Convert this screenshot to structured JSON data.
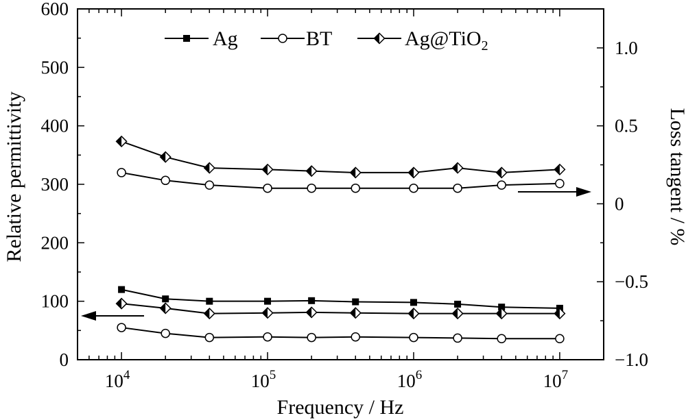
{
  "chart_data": {
    "type": "line",
    "xlabel": "Frequency / Hz",
    "ylabel_left": "Relative permittivity",
    "ylabel_right": "Loss tangent / %",
    "x_scale": "log",
    "xlim": [
      5000,
      20000000
    ],
    "ylim_left": [
      0,
      600
    ],
    "ylim_right": [
      -1.0,
      1.25
    ],
    "x_ticks": [
      {
        "value": 10000,
        "base": "10",
        "exp": "4"
      },
      {
        "value": 100000,
        "base": "10",
        "exp": "5"
      },
      {
        "value": 1000000,
        "base": "10",
        "exp": "6"
      },
      {
        "value": 10000000,
        "base": "10",
        "exp": "7"
      }
    ],
    "y_ticks_left": [
      {
        "value": 0,
        "label": "0"
      },
      {
        "value": 100,
        "label": "100"
      },
      {
        "value": 200,
        "label": "200"
      },
      {
        "value": 300,
        "label": "300"
      },
      {
        "value": 400,
        "label": "400"
      },
      {
        "value": 500,
        "label": "500"
      },
      {
        "value": 600,
        "label": "600"
      }
    ],
    "y_ticks_right": [
      {
        "value": -1.0,
        "label": "−1.0"
      },
      {
        "value": -0.5,
        "label": "−0.5"
      },
      {
        "value": 0,
        "label": "0"
      },
      {
        "value": 0.5,
        "label": "0.5"
      },
      {
        "value": 1.0,
        "label": "1.0"
      }
    ],
    "x": [
      10000,
      20000,
      40000,
      100000,
      200000,
      400000,
      1000000,
      2000000,
      4000000,
      10000000
    ],
    "series": [
      {
        "name": "Ag",
        "marker": "filled-square",
        "axis": "left",
        "group": "permittivity",
        "values": [
          120,
          104,
          100,
          100,
          101,
          99,
          98,
          95,
          90,
          88
        ]
      },
      {
        "name": "BT",
        "marker": "open-circle",
        "axis": "left",
        "group": "permittivity",
        "values": [
          55,
          45,
          38,
          39,
          38,
          39,
          38,
          37,
          36,
          36
        ]
      },
      {
        "name": "Ag@TiO₂",
        "marker": "half-diamond",
        "axis": "left",
        "group": "permittivity",
        "values": [
          96,
          88,
          79,
          80,
          81,
          80,
          79,
          79,
          79,
          79
        ]
      },
      {
        "name": "BT",
        "marker": "open-circle",
        "axis": "right",
        "group": "loss",
        "values": [
          0.2,
          0.15,
          0.12,
          0.1,
          0.1,
          0.1,
          0.1,
          0.1,
          0.12,
          0.13
        ]
      },
      {
        "name": "Ag@TiO₂",
        "marker": "half-diamond",
        "axis": "right",
        "group": "loss",
        "values": [
          0.4,
          0.3,
          0.23,
          0.22,
          0.21,
          0.2,
          0.2,
          0.23,
          0.2,
          0.22
        ]
      }
    ],
    "legend": {
      "placement": "top",
      "entries": [
        {
          "marker": "filled-square",
          "label": "Ag"
        },
        {
          "marker": "open-circle",
          "label": "BT"
        },
        {
          "marker": "half-diamond",
          "label_main": "Ag@TiO",
          "label_sub": "2"
        }
      ]
    },
    "annotations": [
      {
        "type": "arrow",
        "direction": "left",
        "points_to": "left-axis"
      },
      {
        "type": "arrow",
        "direction": "right",
        "points_to": "right-axis"
      }
    ]
  }
}
